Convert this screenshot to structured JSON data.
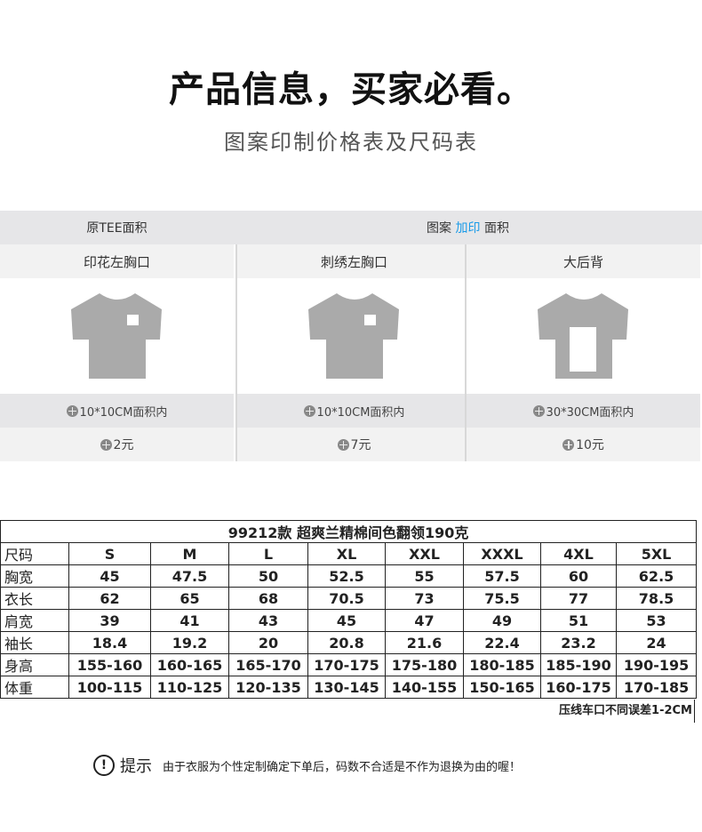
{
  "header": {
    "title": "产品信息，买家必看。",
    "subtitle": "图案印制价格表及尺码表"
  },
  "pricing": {
    "left_header": "原TEE面积",
    "right_header": {
      "pre": "图案 ",
      "highlight": "加印",
      "post": " 面积"
    },
    "highlight_color": "#1a9be8",
    "columns": [
      {
        "label": "印花左胸口",
        "area": "10*10CM面积内",
        "price": "2元",
        "print": "small-chest"
      },
      {
        "label": "刺绣左胸口",
        "area": "10*10CM面积内",
        "price": "7元",
        "print": "small-chest"
      },
      {
        "label": "大后背",
        "area": "30*30CM面积内",
        "price": "10元",
        "print": "large-back"
      }
    ]
  },
  "size_table": {
    "title": "99212款 超爽兰精棉间色翻领190克",
    "headers": [
      "尺码",
      "S",
      "M",
      "L",
      "XL",
      "XXL",
      "XXXL",
      "4XL",
      "5XL"
    ],
    "rows": [
      [
        "胸宽",
        "45",
        "47.5",
        "50",
        "52.5",
        "55",
        "57.5",
        "60",
        "62.5"
      ],
      [
        "衣长",
        "62",
        "65",
        "68",
        "70.5",
        "73",
        "75.5",
        "77",
        "78.5"
      ],
      [
        "肩宽",
        "39",
        "41",
        "43",
        "45",
        "47",
        "49",
        "51",
        "53"
      ],
      [
        "袖长",
        "18.4",
        "19.2",
        "20",
        "20.8",
        "21.6",
        "22.4",
        "23.2",
        "24"
      ],
      [
        "身高",
        "155-160",
        "160-165",
        "165-170",
        "170-175",
        "175-180",
        "180-185",
        "185-190",
        "190-195"
      ],
      [
        "体重",
        "100-115",
        "110-125",
        "120-135",
        "130-145",
        "140-155",
        "150-165",
        "160-175",
        "170-185"
      ]
    ],
    "note": "压线车口不同误差1-2CM"
  },
  "tip": {
    "icon": "exclamation-circle-icon",
    "label": "提示",
    "text": "由于衣服为个性定制确定下单后，码数不合适是不作为退换为由的喔！"
  }
}
